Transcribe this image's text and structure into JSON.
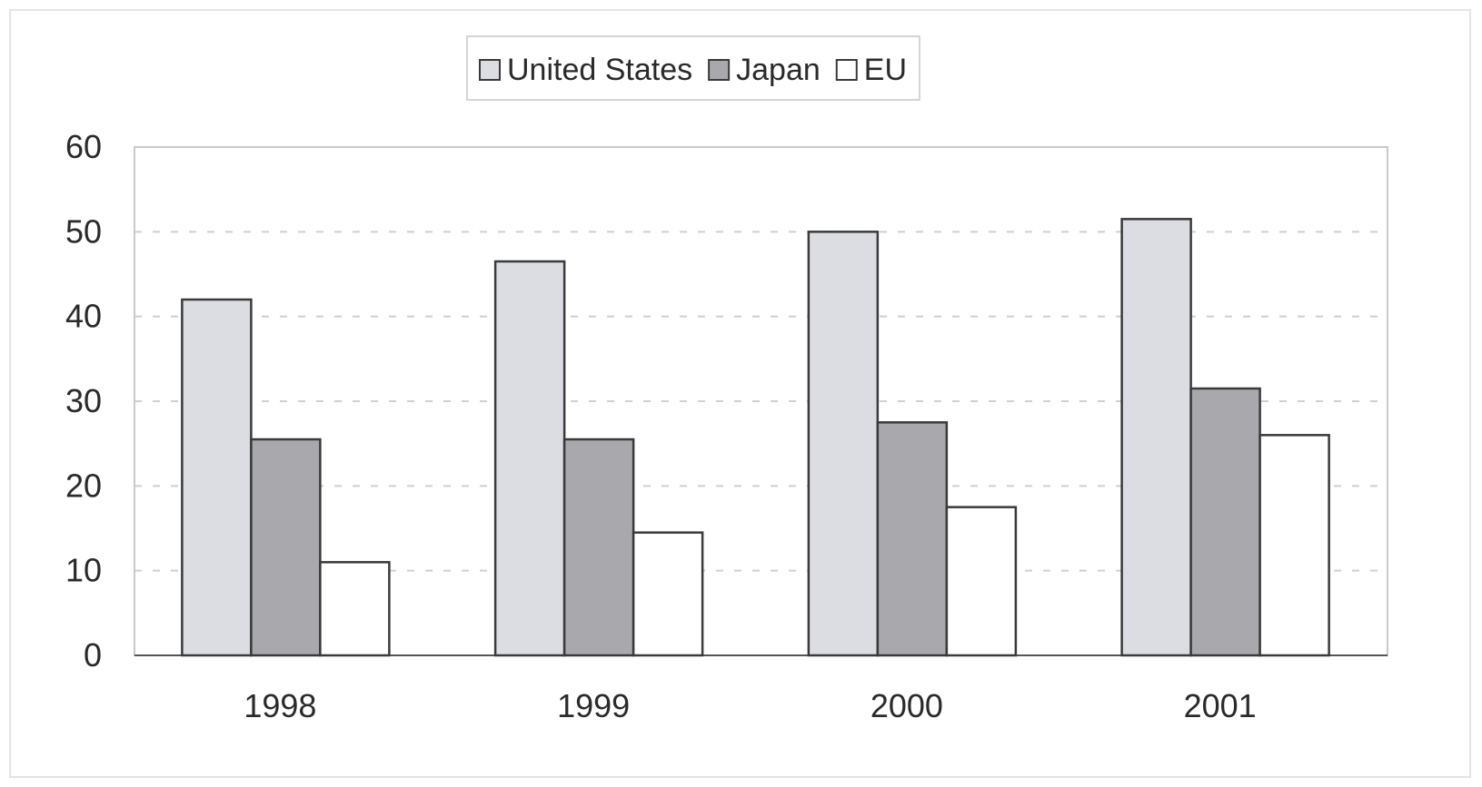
{
  "chart_data": {
    "type": "bar",
    "title": "",
    "xlabel": "",
    "ylabel": "",
    "categories": [
      "1998",
      "1999",
      "2000",
      "2001"
    ],
    "series": [
      {
        "name": "United States",
        "values": [
          42,
          46.5,
          50,
          51.5
        ],
        "color": "#dcdde2"
      },
      {
        "name": "Japan",
        "values": [
          25.5,
          25.5,
          27.5,
          31.5
        ],
        "color": "#a9a9ad"
      },
      {
        "name": "EU",
        "values": [
          11,
          14.5,
          17.5,
          26
        ],
        "color": "#ffffff"
      }
    ],
    "ylim": [
      0,
      60
    ],
    "yticks": [
      "0",
      "10",
      "20",
      "30",
      "40",
      "50",
      "60"
    ],
    "grid": true,
    "legend_position": "top-center"
  }
}
